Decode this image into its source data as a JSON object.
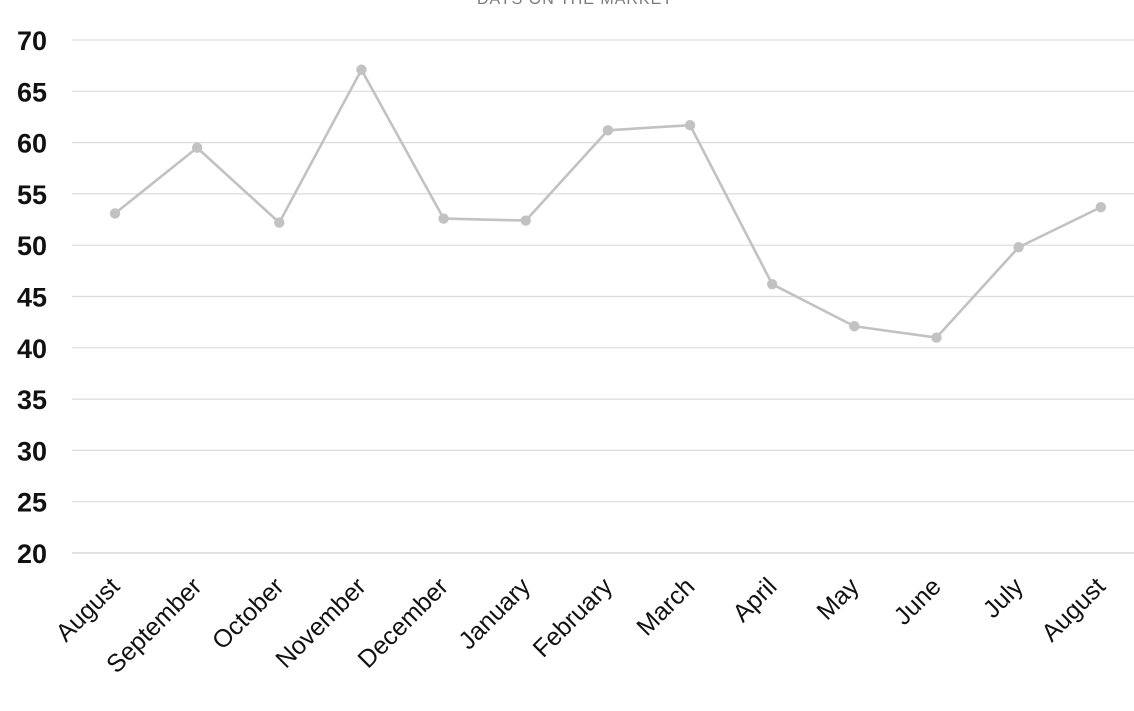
{
  "chart_data": {
    "type": "line",
    "title": "DAYS ON THE MARKET",
    "categories": [
      "August",
      "September",
      "October",
      "November",
      "December",
      "January",
      "February",
      "March",
      "April",
      "May",
      "June",
      "July",
      "August"
    ],
    "series": [
      {
        "values": [
          53.1,
          59.5,
          52.2,
          67.1,
          52.6,
          52.4,
          61.2,
          61.7,
          46.2,
          42.1,
          41.0,
          49.8,
          53.7
        ],
        "color": "#c2c2c2"
      }
    ],
    "y_ticks": [
      20,
      25,
      30,
      35,
      40,
      45,
      50,
      55,
      60,
      65,
      70
    ],
    "ylim": [
      20,
      70
    ],
    "grid": true,
    "legend": "none",
    "colors": {
      "line": "#c2c2c2",
      "grid": "#dcdcdc",
      "tick_text": "#111111",
      "title_text": "#7a7a7a"
    }
  }
}
